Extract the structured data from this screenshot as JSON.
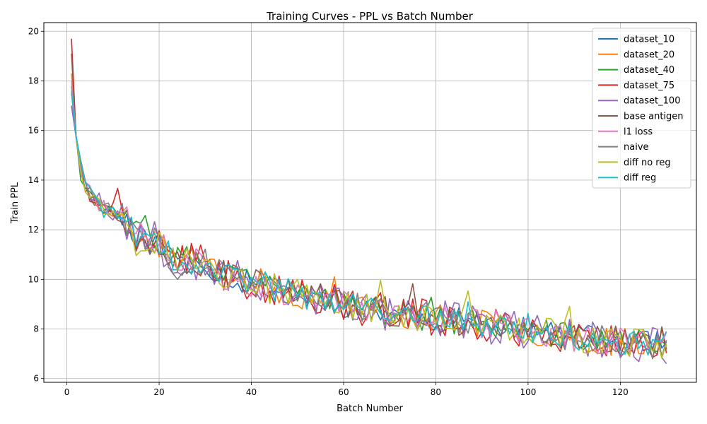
{
  "chart_data": {
    "type": "line",
    "title": "Training Curves - PPL vs Batch Number",
    "xlabel": "Batch Number",
    "ylabel": "Train PPL",
    "xlim": [
      -5,
      136.5
    ],
    "ylim": [
      5.85,
      20.35
    ],
    "xticks": [
      0,
      20,
      40,
      60,
      80,
      100,
      120
    ],
    "yticks": [
      6,
      8,
      10,
      12,
      14,
      16,
      18,
      20
    ],
    "grid": true,
    "legend_position": "top-right",
    "anchors": {
      "x": [
        1,
        2,
        3,
        4,
        5,
        6,
        8,
        10,
        12,
        15,
        18,
        20,
        23,
        26,
        30,
        33,
        36,
        40,
        43,
        46,
        50,
        53,
        56,
        60,
        63,
        66,
        70,
        73,
        76,
        80,
        83,
        86,
        90,
        93,
        96,
        100,
        103,
        106,
        110,
        113,
        116,
        120,
        123,
        126,
        130
      ],
      "y": [
        17.8,
        15.9,
        14.5,
        13.8,
        13.5,
        13.2,
        12.9,
        12.7,
        12.6,
        11.8,
        11.6,
        11.4,
        10.9,
        10.8,
        10.6,
        10.3,
        10.0,
        9.9,
        9.8,
        9.6,
        9.4,
        9.3,
        9.2,
        9.0,
        8.9,
        8.8,
        8.7,
        8.6,
        8.5,
        8.4,
        8.35,
        8.3,
        8.2,
        8.1,
        8.05,
        7.9,
        7.85,
        7.8,
        7.7,
        7.6,
        7.55,
        7.5,
        7.45,
        7.4,
        7.35
      ]
    },
    "series": [
      {
        "name": "dataset_10",
        "color": "#1f77b4",
        "seed": 11,
        "amp": 0.55,
        "start": 17.0
      },
      {
        "name": "dataset_20",
        "color": "#ff7f0e",
        "seed": 23,
        "amp": 0.6,
        "start": 18.3
      },
      {
        "name": "dataset_40",
        "color": "#2ca02c",
        "seed": 37,
        "amp": 0.55,
        "start": 17.8
      },
      {
        "name": "dataset_75",
        "color": "#d62728",
        "seed": 41,
        "amp": 0.75,
        "start": 19.7
      },
      {
        "name": "dataset_100",
        "color": "#9467bd",
        "seed": 53,
        "amp": 0.8,
        "start": 17.0
      },
      {
        "name": "base antigen",
        "color": "#8c564b",
        "seed": 67,
        "amp": 0.6,
        "start": 19.1
      },
      {
        "name": "l1 loss",
        "color": "#e377c2",
        "seed": 71,
        "amp": 0.6,
        "start": 18.0
      },
      {
        "name": "naive",
        "color": "#7f7f7f",
        "seed": 83,
        "amp": 0.6,
        "start": 17.5
      },
      {
        "name": "diff no reg",
        "color": "#bcbd22",
        "seed": 97,
        "amp": 0.6,
        "start": 17.6
      },
      {
        "name": "diff reg",
        "color": "#17becf",
        "seed": 101,
        "amp": 0.55,
        "start": 17.6
      }
    ],
    "n_points": 130
  }
}
